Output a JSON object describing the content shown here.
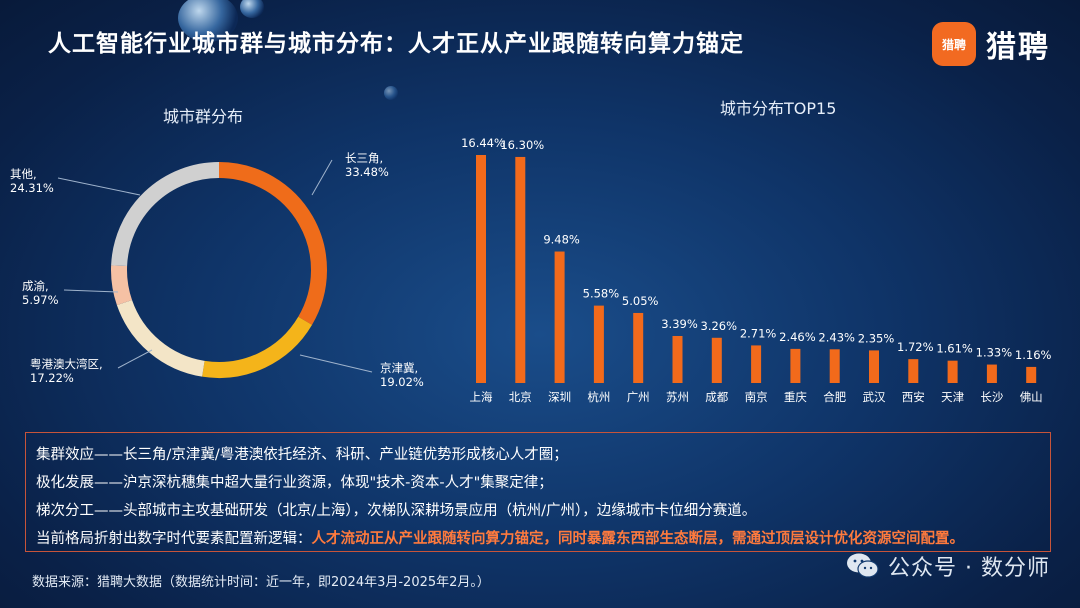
{
  "title": "人工智能行业城市群与城市分布：人才正从产业跟随转向算力锚定",
  "brand": {
    "logo_mark": "猎聘",
    "name": "猎聘",
    "color": "#f26a21"
  },
  "chart_data": [
    {
      "type": "pie",
      "title": "城市群分布",
      "slices": [
        {
          "label": "长三角,",
          "value": 33.48,
          "value_label": "33.48%",
          "color": "#ef6c1a"
        },
        {
          "label": "京津冀,",
          "value": 19.02,
          "value_label": "19.02%",
          "color": "#f4b41a"
        },
        {
          "label": "粤港澳大湾区,",
          "value": 17.22,
          "value_label": "17.22%",
          "color": "#f3e5c7"
        },
        {
          "label": "成渝,",
          "value": 5.97,
          "value_label": "5.97%",
          "color": "#f5c1a4"
        },
        {
          "label": "其他,",
          "value": 24.31,
          "value_label": "24.31%",
          "color": "#d0d0d0"
        }
      ]
    },
    {
      "type": "bar",
      "title": "城市分布TOP15",
      "categories": [
        "上海",
        "北京",
        "深圳",
        "杭州",
        "广州",
        "苏州",
        "成都",
        "南京",
        "重庆",
        "合肥",
        "武汉",
        "西安",
        "天津",
        "长沙",
        "佛山"
      ],
      "values": [
        16.44,
        16.3,
        9.48,
        5.58,
        5.05,
        3.39,
        3.26,
        2.71,
        2.46,
        2.43,
        2.35,
        1.72,
        1.61,
        1.33,
        1.16
      ],
      "value_labels": [
        "16.44%",
        "16.30%",
        "9.48%",
        "5.58%",
        "5.05%",
        "3.39%",
        "3.26%",
        "2.71%",
        "2.46%",
        "2.43%",
        "2.35%",
        "1.72%",
        "1.61%",
        "1.33%",
        "1.16%"
      ],
      "color": "#f26a1b",
      "ylim": [
        0,
        16.44
      ]
    }
  ],
  "notes": [
    {
      "text": "集群效应——长三角/京津冀/粤港澳依托经济、科研、产业链优势形成核心人才圈；"
    },
    {
      "text": "极化发展——沪京深杭穗集中超大量行业资源，体现\"技术-资本-人才\"集聚定律；"
    },
    {
      "text": "梯次分工——头部城市主攻基础研发（北京/上海），次梯队深耕场景应用（杭州/广州），边缘城市卡位细分赛道。"
    },
    {
      "text": "当前格局折射出数字时代要素配置新逻辑：",
      "highlight": "人才流动正从产业跟随转向算力锚定，同时暴露东西部生态断层，需通过顶层设计优化资源空间配置。"
    }
  ],
  "source": "数据来源：猎聘大数据（数据统计时间：近一年，即2024年3月-2025年2月。）",
  "watermark": "公众号 · 数分师"
}
